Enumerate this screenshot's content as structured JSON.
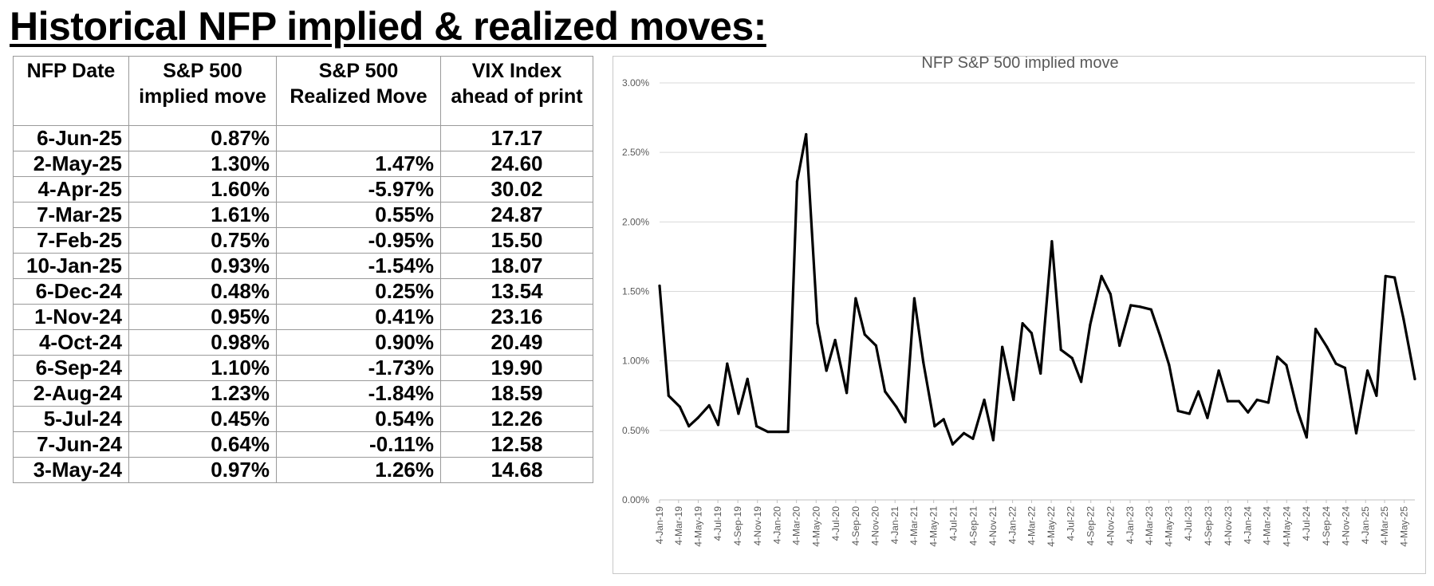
{
  "title": "Historical NFP implied & realized moves:",
  "table": {
    "headers": {
      "date": "NFP Date",
      "implied": "S&P 500 implied move",
      "realized": "S&P 500 Realized Move",
      "vix": "VIX Index ahead of print"
    },
    "rows": [
      {
        "date": "6-Jun-25",
        "implied": "0.87%",
        "realized": "",
        "vix": "17.17"
      },
      {
        "date": "2-May-25",
        "implied": "1.30%",
        "realized": "1.47%",
        "vix": "24.60"
      },
      {
        "date": "4-Apr-25",
        "implied": "1.60%",
        "realized": "-5.97%",
        "vix": "30.02"
      },
      {
        "date": "7-Mar-25",
        "implied": "1.61%",
        "realized": "0.55%",
        "vix": "24.87"
      },
      {
        "date": "7-Feb-25",
        "implied": "0.75%",
        "realized": "-0.95%",
        "vix": "15.50"
      },
      {
        "date": "10-Jan-25",
        "implied": "0.93%",
        "realized": "-1.54%",
        "vix": "18.07"
      },
      {
        "date": "6-Dec-24",
        "implied": "0.48%",
        "realized": "0.25%",
        "vix": "13.54"
      },
      {
        "date": "1-Nov-24",
        "implied": "0.95%",
        "realized": "0.41%",
        "vix": "23.16"
      },
      {
        "date": "4-Oct-24",
        "implied": "0.98%",
        "realized": "0.90%",
        "vix": "20.49"
      },
      {
        "date": "6-Sep-24",
        "implied": "1.10%",
        "realized": "-1.73%",
        "vix": "19.90"
      },
      {
        "date": "2-Aug-24",
        "implied": "1.23%",
        "realized": "-1.84%",
        "vix": "18.59"
      },
      {
        "date": "5-Jul-24",
        "implied": "0.45%",
        "realized": "0.54%",
        "vix": "12.26"
      },
      {
        "date": "7-Jun-24",
        "implied": "0.64%",
        "realized": "-0.11%",
        "vix": "12.58"
      },
      {
        "date": "3-May-24",
        "implied": "0.97%",
        "realized": "1.26%",
        "vix": "14.68"
      }
    ]
  },
  "chart_data": {
    "type": "line",
    "title": "NFP S&P 500 implied move",
    "xlabel": "",
    "ylabel": "",
    "ylim": [
      0,
      3
    ],
    "y_unit": "%",
    "y_ticks": [
      "0.00%",
      "0.50%",
      "1.00%",
      "1.50%",
      "2.00%",
      "2.50%",
      "3.00%"
    ],
    "grid": true,
    "legend": "none",
    "x_tick_labels": [
      "4-Jan-19",
      "4-Mar-19",
      "4-May-19",
      "4-Jul-19",
      "4-Sep-19",
      "4-Nov-19",
      "4-Jan-20",
      "4-Mar-20",
      "4-May-20",
      "4-Jul-20",
      "4-Sep-20",
      "4-Nov-20",
      "4-Jan-21",
      "4-Mar-21",
      "4-May-21",
      "4-Jul-21",
      "4-Sep-21",
      "4-Nov-21",
      "4-Jan-22",
      "4-Mar-22",
      "4-May-22",
      "4-Jul-22",
      "4-Sep-22",
      "4-Nov-22",
      "4-Jan-23",
      "4-Mar-23",
      "4-May-23",
      "4-Jul-23",
      "4-Sep-23",
      "4-Nov-23",
      "4-Jan-24",
      "4-Mar-24",
      "4-May-24",
      "4-Jul-24",
      "4-Sep-24",
      "4-Nov-24",
      "4-Jan-25",
      "4-Mar-25",
      "4-May-25"
    ],
    "line_color": "#000000",
    "series": [
      {
        "values": [
          {
            "x": "2019-01-04",
            "y": 1.54
          },
          {
            "x": "2019-02-01",
            "y": 0.75
          },
          {
            "x": "2019-03-08",
            "y": 0.67
          },
          {
            "x": "2019-04-05",
            "y": 0.53
          },
          {
            "x": "2019-05-03",
            "y": 0.59
          },
          {
            "x": "2019-06-07",
            "y": 0.68
          },
          {
            "x": "2019-07-05",
            "y": 0.54
          },
          {
            "x": "2019-08-02",
            "y": 0.98
          },
          {
            "x": "2019-09-06",
            "y": 0.62
          },
          {
            "x": "2019-10-04",
            "y": 0.87
          },
          {
            "x": "2019-11-01",
            "y": 0.53
          },
          {
            "x": "2019-12-06",
            "y": 0.49
          },
          {
            "x": "2020-01-10",
            "y": 0.49
          },
          {
            "x": "2020-02-07",
            "y": 0.49
          },
          {
            "x": "2020-03-06",
            "y": 2.29
          },
          {
            "x": "2020-04-03",
            "y": 2.63
          },
          {
            "x": "2020-05-08",
            "y": 1.27
          },
          {
            "x": "2020-06-05",
            "y": 0.93
          },
          {
            "x": "2020-07-02",
            "y": 1.15
          },
          {
            "x": "2020-08-07",
            "y": 0.77
          },
          {
            "x": "2020-09-04",
            "y": 1.45
          },
          {
            "x": "2020-10-02",
            "y": 1.19
          },
          {
            "x": "2020-11-06",
            "y": 1.11
          },
          {
            "x": "2020-12-04",
            "y": 0.78
          },
          {
            "x": "2021-01-08",
            "y": 0.67
          },
          {
            "x": "2021-02-05",
            "y": 0.56
          },
          {
            "x": "2021-03-05",
            "y": 1.45
          },
          {
            "x": "2021-04-02",
            "y": 0.99
          },
          {
            "x": "2021-05-07",
            "y": 0.53
          },
          {
            "x": "2021-06-04",
            "y": 0.58
          },
          {
            "x": "2021-07-02",
            "y": 0.4
          },
          {
            "x": "2021-08-06",
            "y": 0.48
          },
          {
            "x": "2021-09-03",
            "y": 0.44
          },
          {
            "x": "2021-10-08",
            "y": 0.72
          },
          {
            "x": "2021-11-05",
            "y": 0.43
          },
          {
            "x": "2021-12-03",
            "y": 1.1
          },
          {
            "x": "2022-01-07",
            "y": 0.72
          },
          {
            "x": "2022-02-04",
            "y": 1.27
          },
          {
            "x": "2022-03-04",
            "y": 1.2
          },
          {
            "x": "2022-04-01",
            "y": 0.91
          },
          {
            "x": "2022-05-06",
            "y": 1.86
          },
          {
            "x": "2022-06-03",
            "y": 1.08
          },
          {
            "x": "2022-07-08",
            "y": 1.02
          },
          {
            "x": "2022-08-05",
            "y": 0.85
          },
          {
            "x": "2022-09-02",
            "y": 1.26
          },
          {
            "x": "2022-10-07",
            "y": 1.61
          },
          {
            "x": "2022-11-04",
            "y": 1.48
          },
          {
            "x": "2022-12-02",
            "y": 1.11
          },
          {
            "x": "2023-01-06",
            "y": 1.4
          },
          {
            "x": "2023-02-03",
            "y": 1.39
          },
          {
            "x": "2023-03-10",
            "y": 1.37
          },
          {
            "x": "2023-04-07",
            "y": 1.18
          },
          {
            "x": "2023-05-05",
            "y": 0.97
          },
          {
            "x": "2023-06-02",
            "y": 0.64
          },
          {
            "x": "2023-07-07",
            "y": 0.62
          },
          {
            "x": "2023-08-04",
            "y": 0.78
          },
          {
            "x": "2023-09-01",
            "y": 0.59
          },
          {
            "x": "2023-10-06",
            "y": 0.93
          },
          {
            "x": "2023-11-03",
            "y": 0.71
          },
          {
            "x": "2023-12-08",
            "y": 0.71
          },
          {
            "x": "2024-01-05",
            "y": 0.63
          },
          {
            "x": "2024-02-02",
            "y": 0.72
          },
          {
            "x": "2024-03-08",
            "y": 0.7
          },
          {
            "x": "2024-04-05",
            "y": 1.03
          },
          {
            "x": "2024-05-03",
            "y": 0.97
          },
          {
            "x": "2024-06-07",
            "y": 0.64
          },
          {
            "x": "2024-07-05",
            "y": 0.45
          },
          {
            "x": "2024-08-02",
            "y": 1.23
          },
          {
            "x": "2024-09-06",
            "y": 1.1
          },
          {
            "x": "2024-10-04",
            "y": 0.98
          },
          {
            "x": "2024-11-01",
            "y": 0.95
          },
          {
            "x": "2024-12-06",
            "y": 0.48
          },
          {
            "x": "2025-01-10",
            "y": 0.93
          },
          {
            "x": "2025-02-07",
            "y": 0.75
          },
          {
            "x": "2025-03-07",
            "y": 1.61
          },
          {
            "x": "2025-04-04",
            "y": 1.6
          },
          {
            "x": "2025-05-02",
            "y": 1.3
          },
          {
            "x": "2025-06-06",
            "y": 0.87
          }
        ]
      }
    ]
  }
}
